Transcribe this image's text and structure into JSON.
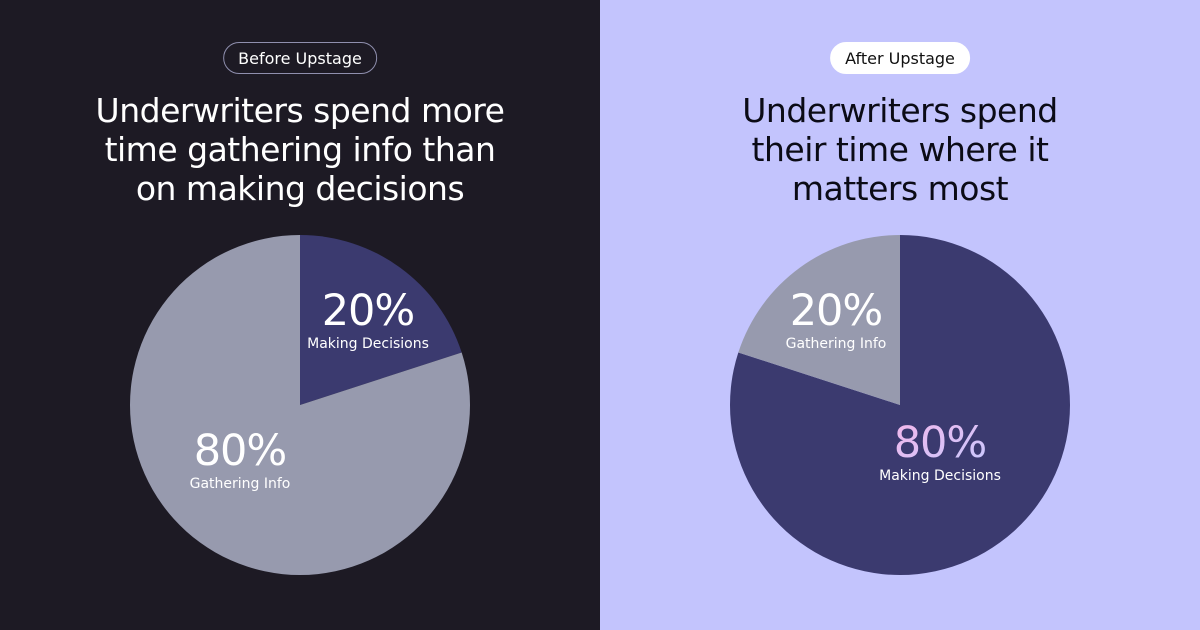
{
  "panels": {
    "before": {
      "badge": "Before Upstage",
      "headline_lines": [
        "Underwriters spend more",
        "time gathering info than",
        "on making decisions"
      ]
    },
    "after": {
      "badge": "After Upstage",
      "headline_lines": [
        "Underwriters spend",
        "their time where it",
        "matters most"
      ]
    }
  },
  "colors": {
    "before_background": "#1d1a24",
    "after_background": "#c3c4fd",
    "making_decisions_slice": "#3b3a6f",
    "gathering_info_slice": "#979aae",
    "after_highlight_gradient": [
      "#f4b6ea",
      "#c7c9ff"
    ]
  },
  "chart_data": [
    {
      "type": "pie",
      "title": "Underwriters spend more time gathering info than on making decisions",
      "slices": [
        {
          "label": "Making Decisions",
          "value": 20,
          "value_label": "20%",
          "color": "#3b3a6f"
        },
        {
          "label": "Gathering Info",
          "value": 80,
          "value_label": "80%",
          "color": "#979aae"
        }
      ]
    },
    {
      "type": "pie",
      "title": "Underwriters spend their time where it matters most",
      "slices": [
        {
          "label": "Making Decisions",
          "value": 80,
          "value_label": "80%",
          "color": "#3b3a6f"
        },
        {
          "label": "Gathering Info",
          "value": 20,
          "value_label": "20%",
          "color": "#979aae"
        }
      ]
    }
  ]
}
